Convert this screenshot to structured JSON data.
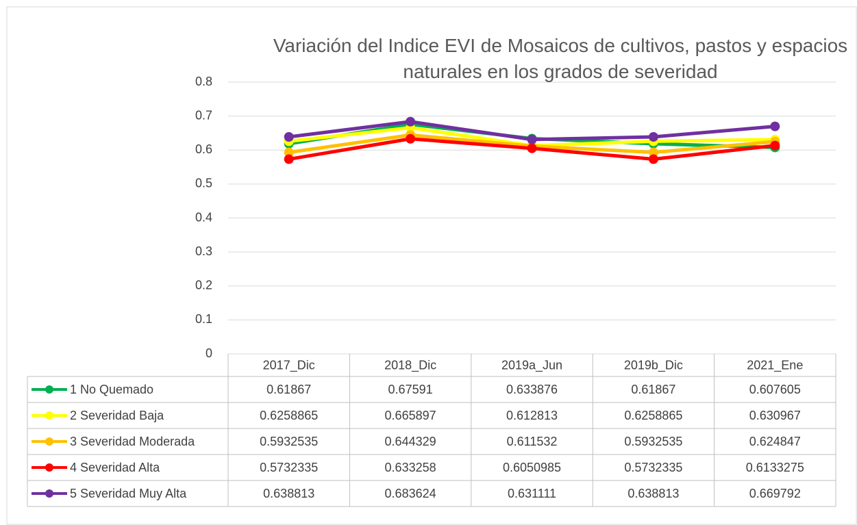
{
  "chart_data": {
    "type": "line",
    "title": "Variación del Indice EVI de Mosaicos de cultivos, pastos y espacios naturales en los grados de severidad",
    "categories": [
      "2017_Dic",
      "2018_Dic",
      "2019a_Jun",
      "2019b_Dic",
      "2021_Ene"
    ],
    "series": [
      {
        "name": "1 No Quemado",
        "color": "#00b050",
        "values": [
          0.61867,
          0.67591,
          0.633876,
          0.61867,
          0.607605
        ]
      },
      {
        "name": "2 Severidad Baja",
        "color": "#ffff00",
        "values": [
          0.6258865,
          0.665897,
          0.612813,
          0.6258865,
          0.630967
        ]
      },
      {
        "name": "3 Severidad Moderada",
        "color": "#ffc000",
        "values": [
          0.5932535,
          0.644329,
          0.611532,
          0.5932535,
          0.624847
        ]
      },
      {
        "name": "4 Severidad Alta",
        "color": "#ff0000",
        "values": [
          0.5732335,
          0.633258,
          0.6050985,
          0.5732335,
          0.6133275
        ]
      },
      {
        "name": "5 Severidad Muy Alta",
        "color": "#7030a0",
        "values": [
          0.638813,
          0.683624,
          0.631111,
          0.638813,
          0.669792
        ]
      }
    ],
    "ylim": [
      0,
      0.8
    ],
    "yticks": [
      0,
      0.1,
      0.2,
      0.3,
      0.4,
      0.5,
      0.6,
      0.7,
      0.8
    ],
    "grid": true
  }
}
